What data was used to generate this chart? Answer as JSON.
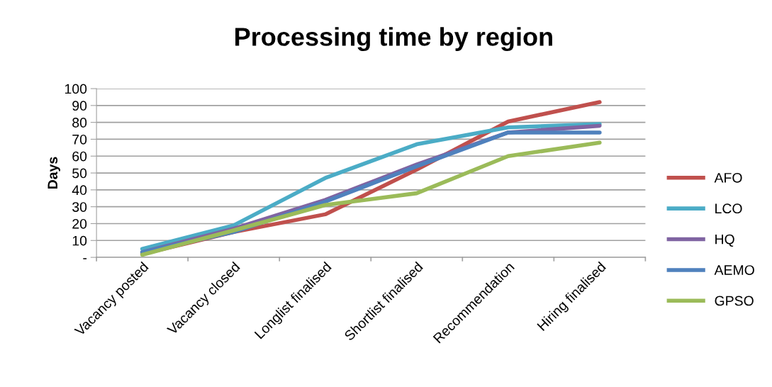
{
  "chart_data": {
    "type": "line",
    "title": "Processing time by region",
    "ylabel": "Days",
    "categories": [
      "Vacancy posted",
      "Vacancy closed",
      "Longlist finalised",
      "Shortlist finalised",
      "Recommendation",
      "Hiring finalised"
    ],
    "series": [
      {
        "name": "AFO",
        "color": "#c0504d",
        "values": [
          2,
          15,
          25.5,
          52,
          80.5,
          92
        ]
      },
      {
        "name": "LCO",
        "color": "#4bacc6",
        "values": [
          5,
          19,
          47,
          67,
          77,
          79
        ]
      },
      {
        "name": "HQ",
        "color": "#8064a2",
        "values": [
          3,
          17,
          34,
          55,
          74,
          78
        ]
      },
      {
        "name": "AEMO",
        "color": "#4f81bd",
        "values": [
          3,
          15,
          33,
          54,
          74,
          74
        ]
      },
      {
        "name": "GPSO",
        "color": "#9bbb59",
        "values": [
          1.5,
          16,
          31,
          38,
          60,
          68
        ]
      }
    ],
    "ylim": [
      0,
      100
    ],
    "yticks": [
      {
        "value": 0,
        "label": "-"
      },
      10,
      20,
      30,
      40,
      50,
      60,
      70,
      80,
      90,
      100
    ],
    "grid": "y",
    "legend": "right",
    "marker": "none",
    "line_style": "solid"
  }
}
